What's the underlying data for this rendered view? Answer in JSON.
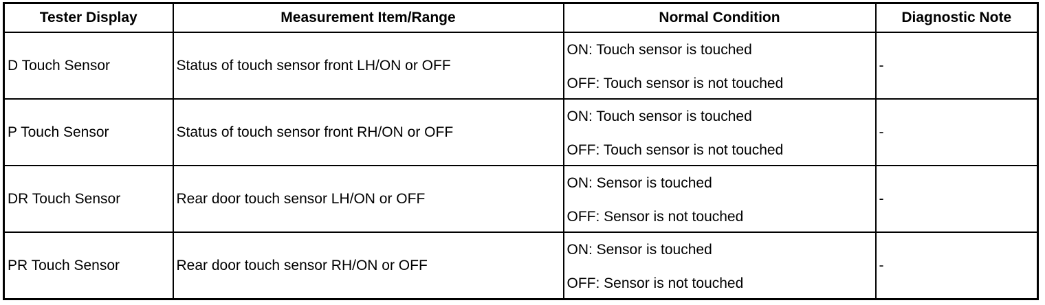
{
  "headers": [
    "Tester Display",
    "Measurement Item/Range",
    "Normal Condition",
    "Diagnostic Note"
  ],
  "rows": [
    {
      "tester_display": "D Touch Sensor",
      "measurement": "Status of touch sensor front LH/ON or OFF",
      "normal_on": "ON: Touch sensor is touched",
      "normal_off": "OFF: Touch sensor is not touched",
      "note": "-"
    },
    {
      "tester_display": "P Touch Sensor",
      "measurement": "Status of touch sensor front RH/ON or OFF",
      "normal_on": "ON: Touch sensor is touched",
      "normal_off": "OFF: Touch sensor is not touched",
      "note": "-"
    },
    {
      "tester_display": "DR Touch Sensor",
      "measurement": "Rear door touch sensor LH/ON or OFF",
      "normal_on": "ON: Sensor is touched",
      "normal_off": "OFF: Sensor is not touched",
      "note": "-"
    },
    {
      "tester_display": "PR Touch Sensor",
      "measurement": "Rear door touch sensor RH/ON or OFF",
      "normal_on": "ON: Sensor is touched",
      "normal_off": "OFF: Sensor is not touched",
      "note": "-"
    }
  ]
}
